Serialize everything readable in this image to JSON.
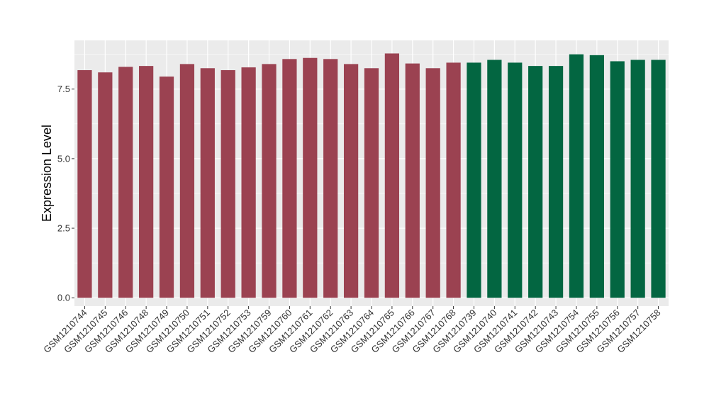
{
  "chart_data": {
    "type": "bar",
    "title": "",
    "xlabel": "",
    "ylabel": "Expression Level",
    "ylim": [
      -0.3,
      9.25
    ],
    "yticks": [
      0.0,
      2.5,
      5.0,
      7.5
    ],
    "ytick_labels": [
      "0.0",
      "2.5",
      "5.0",
      "7.5"
    ],
    "grid": true,
    "legend": "none",
    "categories": [
      "GSM1210744",
      "GSM1210745",
      "GSM1210746",
      "GSM1210748",
      "GSM1210749",
      "GSM1210750",
      "GSM1210751",
      "GSM1210752",
      "GSM1210753",
      "GSM1210759",
      "GSM1210760",
      "GSM1210761",
      "GSM1210762",
      "GSM1210763",
      "GSM1210764",
      "GSM1210765",
      "GSM1210766",
      "GSM1210767",
      "GSM1210768",
      "GSM1210739",
      "GSM1210740",
      "GSM1210741",
      "GSM1210742",
      "GSM1210743",
      "GSM1210754",
      "GSM1210755",
      "GSM1210756",
      "GSM1210757",
      "GSM1210758"
    ],
    "values": [
      8.18,
      8.1,
      8.3,
      8.33,
      7.95,
      8.4,
      8.25,
      8.18,
      8.28,
      8.4,
      8.58,
      8.62,
      8.58,
      8.4,
      8.25,
      8.78,
      8.42,
      8.25,
      8.45,
      8.45,
      8.55,
      8.45,
      8.33,
      8.33,
      8.75,
      8.72,
      8.5,
      8.55,
      8.55
    ],
    "groups": [
      0,
      0,
      0,
      0,
      0,
      0,
      0,
      0,
      0,
      0,
      0,
      0,
      0,
      0,
      0,
      0,
      0,
      0,
      0,
      1,
      1,
      1,
      1,
      1,
      1,
      1,
      1,
      1,
      1
    ],
    "colors": [
      "#9b4251",
      "#036641"
    ],
    "panel_background": "#ebebeb",
    "grid_color": "#ffffff"
  }
}
